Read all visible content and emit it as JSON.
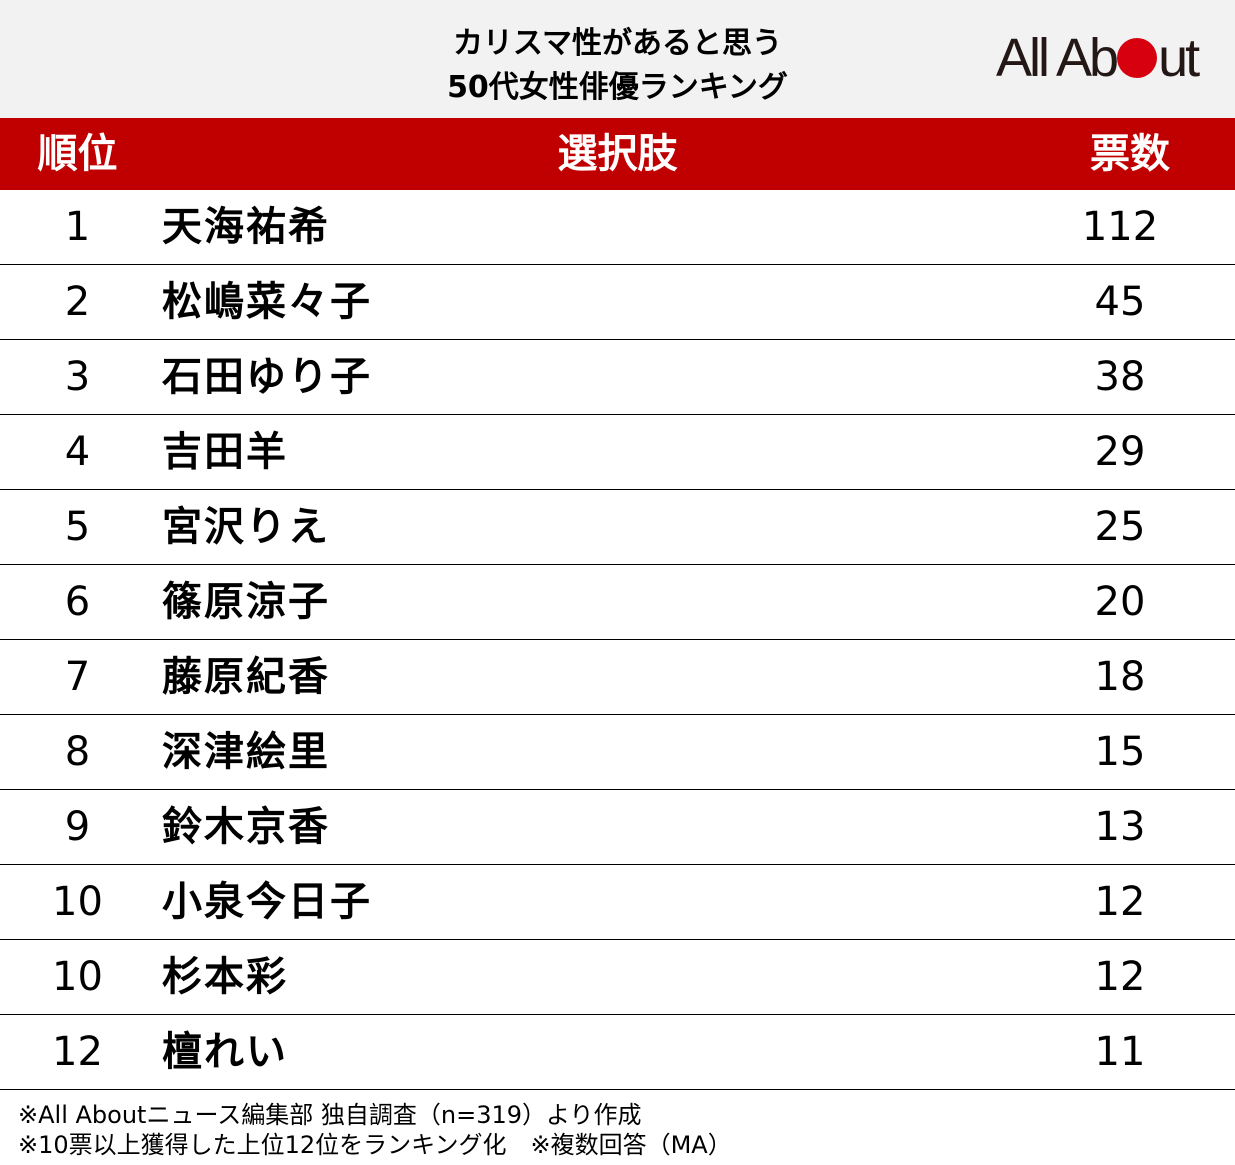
{
  "header": {
    "title_line1": "カリスマ性があると思う",
    "title_line2": "50代女性俳優ランキング",
    "logo_text_left": "All Ab",
    "logo_text_right": "ut"
  },
  "chart_data": {
    "type": "table",
    "columns": [
      "順位",
      "選択肢",
      "票数"
    ],
    "rows": [
      {
        "rank": "1",
        "name": "天海祐希",
        "votes": "112"
      },
      {
        "rank": "2",
        "name": "松嶋菜々子",
        "votes": "45"
      },
      {
        "rank": "3",
        "name": "石田ゆり子",
        "votes": "38"
      },
      {
        "rank": "4",
        "name": "吉田羊",
        "votes": "29"
      },
      {
        "rank": "5",
        "name": "宮沢りえ",
        "votes": "25"
      },
      {
        "rank": "6",
        "name": "篠原涼子",
        "votes": "20"
      },
      {
        "rank": "7",
        "name": "藤原紀香",
        "votes": "18"
      },
      {
        "rank": "8",
        "name": "深津絵里",
        "votes": "15"
      },
      {
        "rank": "9",
        "name": "鈴木京香",
        "votes": "13"
      },
      {
        "rank": "10",
        "name": "小泉今日子",
        "votes": "12"
      },
      {
        "rank": "10",
        "name": "杉本彩",
        "votes": "12"
      },
      {
        "rank": "12",
        "name": "檀れい",
        "votes": "11"
      }
    ]
  },
  "footnotes": {
    "line1": "※All Aboutニュース編集部 独自調査（n=319）より作成",
    "line2": "※10票以上獲得した上位12位をランキング化　※複数回答（MA）"
  },
  "colors": {
    "header_bg": "#c00000",
    "title_bg": "#f2f2f2",
    "logo_dot": "#d7000f"
  }
}
